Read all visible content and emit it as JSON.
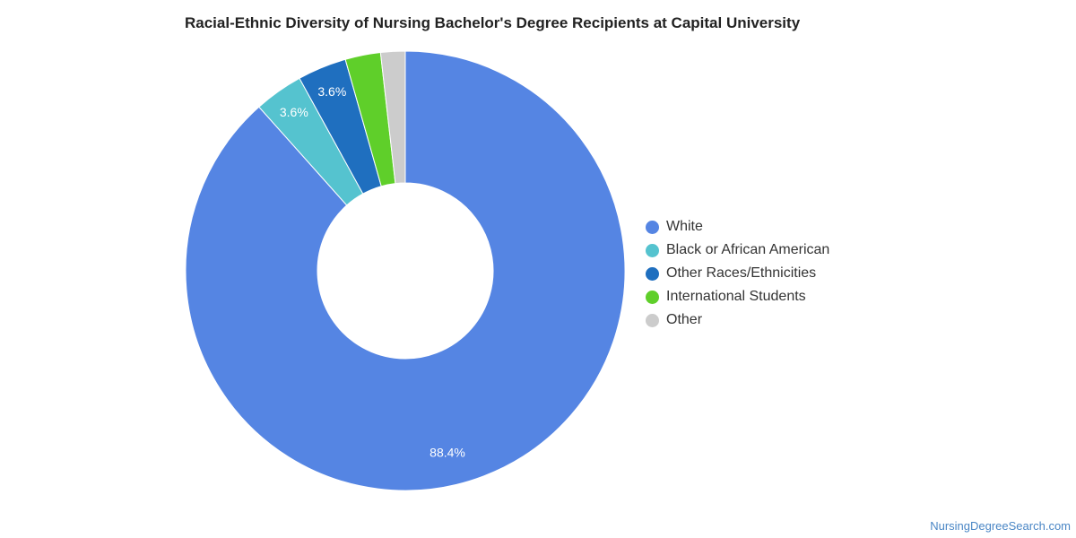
{
  "chart_data": {
    "type": "pie",
    "title": "Racial-Ethnic Diversity of Nursing Bachelor's Degree Recipients at Capital University",
    "categories": [
      "White",
      "Black or African American",
      "Other Races/Ethnicities",
      "International Students",
      "Other"
    ],
    "values": [
      88.4,
      3.6,
      3.6,
      2.6,
      1.8
    ],
    "data_labels": [
      "88.4%",
      "3.6%",
      "3.6%",
      "",
      ""
    ],
    "colors": [
      "#5585e3",
      "#55c3cf",
      "#1f6fbf",
      "#5fcf2a",
      "#cccccc"
    ],
    "donut": true,
    "legend_position": "right"
  },
  "footer": {
    "source": "NursingDegreeSearch.com"
  }
}
